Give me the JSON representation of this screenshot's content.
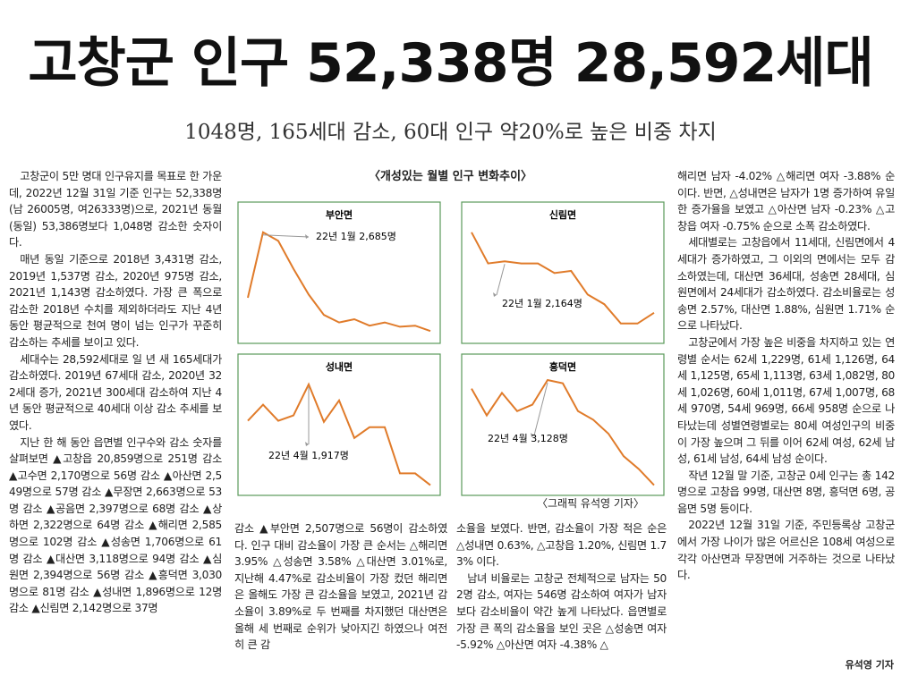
{
  "headline": "고창군 인구 52,338명 28,592세대",
  "subtitle": "1048명, 165세대 감소, 60대 인구 약20%로 높은 비중 차지",
  "charts_title": "〈개성있는 월별 인구 변화추이〉",
  "credit": "〈그래픽 유석영 기자〉",
  "byline": "유석영 기자",
  "columns": [
    [
      "고창군이 5만 명대 인구유지를 목표로 한 가운데, 2022년 12월 31일 기준 인구는 52,338명(남 26005명, 여26333명)으로, 2021년 동월(동일) 53,386명보다 1,048명 감소한 숫자이다.",
      "매년 동일 기준으로 2018년 3,431명 감소, 2019년 1,537명 감소, 2020년 975명 감소, 2021년 1,143명 감소하였다. 가장 큰 폭으로 감소한 2018년 수치를 제외하더라도 지난 4년 동안 평균적으로 천여 명이 넘는 인구가 꾸준히 감소하는 추세를 보이고 있다.",
      "세대수는 28,592세대로 일 년 새 165세대가 감소하였다. 2019년 67세대 감소, 2020년 322세대 증가, 2021년 300세대 감소하여 지난 4년 동안 평균적으로 40세대 이상 감소 추세를 보였다.",
      "지난 한 해 동안 읍면별 인구수와 감소 숫자를 살펴보면 ▲고창읍 20,859명으로 251명 감소 ▲고수면 2,170명으로 56명 감소 ▲아산면 2,549명으로 57명 감소 ▲무장면 2,663명으로 53명 감소 ▲공음면 2,397명으로 68명 감소 ▲상하면 2,322명으로 64명 감소 ▲해리면 2,585명으로 102명 감소 ▲성송면 1,706명으로 61명 감소 ▲대산면 3,118명으로 94명 감소 ▲심원면 2,394명으로 56명 감소 ▲흥덕면 3,030명으로 81명 감소 ▲성내면 1,896명으로 12명 감소 ▲신림면 2,142명으로 37명"
    ],
    [
      "감소 ▲부안면 2,507명으로 56명이 감소하였다. 인구 대비 감소율이 가장 큰 순서는 △해리면 3.95% △성송면 3.58% △대산면 3.01%로, 지난해 4.47%로 감소비율이 가장 컸던 해리면은 올해도 가장 큰 감소율을 보였고, 2021년 감소율이 3.89%로 두 번째를 차지했던 대산면은 올해 세 번째로 순위가 낮아지긴 하였으나 여전히 큰 감"
    ],
    [
      "소율을 보였다. 반면, 감소율이 가장 적은 순은 △성내면 0.63%, △고창읍 1.20%, 신림면 1.73% 이다.",
      "남녀 비율로는 고창군 전체적으로 남자는 502명 감소, 여자는 546명 감소하여 여자가 남자보다 감소비율이 약간 높게 나타났다. 읍면별로 가장 큰 폭의 감소율을 보인 곳은 △성송면 여자 -5.92% △아산면 여자 -4.38% △"
    ],
    [
      "해리면 남자 -4.02% △해리면 여자 -3.88% 순이다. 반면, △성내면은 남자가 1명 증가하여 유일한 증가율을 보였고 △아산면 남자 -0.23% △고창읍 여자 -0.75% 순으로 소폭 감소하였다.",
      "세대별로는 고창읍에서 11세대, 신림면에서 4세대가 증가하였고, 그 이외의 면에서는 모두 감소하였는데, 대산면 36세대, 성송면 28세대, 심원면에서 24세대가 감소하였다. 감소비율로는 성송면 2.57%, 대산면 1.88%, 심원면 1.71% 순으로 나타났다.",
      "고창군에서 가장 높은 비중을 차지하고 있는 연령별 순서는 62세 1,229명, 61세 1,126명, 64세 1,125명, 65세 1,113명, 63세 1,082명, 80세 1,026명, 60세 1,011명, 67세 1,007명, 68세 970명, 54세 969명, 66세 958명 순으로 나타났는데 성별연령별로는 80세 여성인구의 비중이 가장 높으며 그 뒤를 이어 62세 여성, 62세 남성, 61세 남성, 64세 남성 순이다.",
      "작년 12월 말 기준, 고창군 0세 인구는 총 142명으로 고창읍 99명, 대산면 8명, 흥덕면 6명, 공음면 5명 등이다.",
      "2022년 12월 31일 기준, 주민등록상 고창군에서 가장 나이가 많은 어르신은 108세 여성으로 각각 아산면과 무장면에 거주하는 것으로 나타났다."
    ]
  ],
  "chart_data": [
    {
      "type": "line",
      "title": "부안면",
      "annotation": "22년 1월 2,685명",
      "color": "#e07b2a",
      "ylim": [
        0,
        100
      ],
      "values": [
        35,
        96,
        88,
        62,
        38,
        19,
        12,
        15,
        9,
        12,
        8,
        9,
        4
      ]
    },
    {
      "type": "line",
      "title": "신림면",
      "annotation": "22년 1월 2,164명",
      "color": "#e07b2a",
      "ylim": [
        0,
        100
      ],
      "values": [
        96,
        67,
        69,
        67,
        67,
        58,
        60,
        38,
        29,
        11,
        11,
        21
      ]
    },
    {
      "type": "line",
      "title": "성내면",
      "annotation": "22년 4월 1,917명",
      "color": "#e07b2a",
      "ylim": [
        0,
        100
      ],
      "values": [
        62,
        77,
        62,
        67,
        96,
        61,
        81,
        46,
        56,
        56,
        13,
        13,
        2
      ]
    },
    {
      "type": "line",
      "title": "흥덕면",
      "annotation": "22년 4월 3,128명",
      "color": "#e07b2a",
      "ylim": [
        0,
        100
      ],
      "values": [
        92,
        67,
        88,
        71,
        77,
        100,
        97,
        71,
        63,
        50,
        29,
        17,
        2
      ]
    }
  ]
}
